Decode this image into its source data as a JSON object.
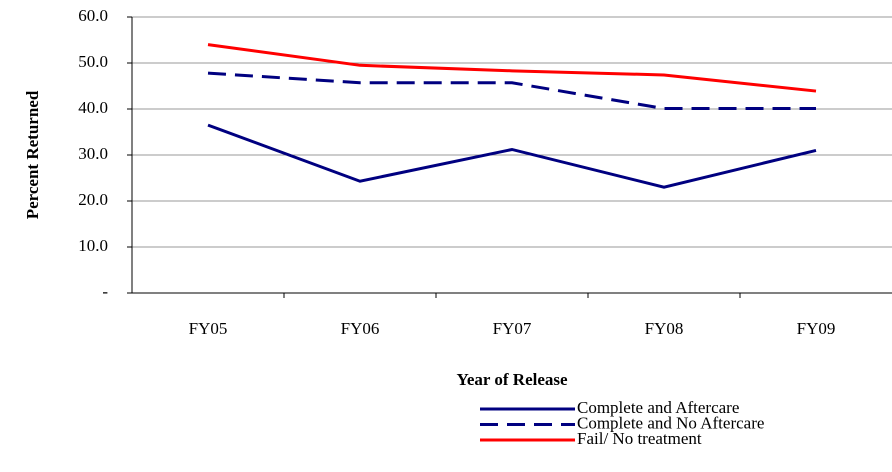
{
  "chart_data": {
    "type": "line",
    "y_label": "Percent Returned",
    "x_label": "Year of Release",
    "categories": [
      "FY05",
      "FY06",
      "FY07",
      "FY08",
      "FY09"
    ],
    "series": [
      {
        "name": "Complete and Aftercare",
        "color": "#000080",
        "style": "solid",
        "values": [
          36.5,
          24.3,
          31.2,
          23.0,
          31.0
        ]
      },
      {
        "name": "Complete and No Aftercare",
        "color": "#000080",
        "style": "dashed",
        "values": [
          47.8,
          45.7,
          45.7,
          40.1,
          40.1
        ]
      },
      {
        "name": "Fail/ No treatment",
        "color": "#ff0000",
        "style": "solid",
        "values": [
          54.0,
          49.5,
          48.3,
          47.4,
          43.9
        ]
      }
    ],
    "ylim": [
      0,
      60
    ],
    "yticks": [
      {
        "value": 0,
        "label": "-"
      },
      {
        "value": 10,
        "label": "10.0"
      },
      {
        "value": 20,
        "label": "20.0"
      },
      {
        "value": 30,
        "label": "30.0"
      },
      {
        "value": 40,
        "label": "40.0"
      },
      {
        "value": 50,
        "label": "50.0"
      },
      {
        "value": 60,
        "label": "60.0"
      }
    ],
    "grid": true,
    "legend": "bottom"
  }
}
